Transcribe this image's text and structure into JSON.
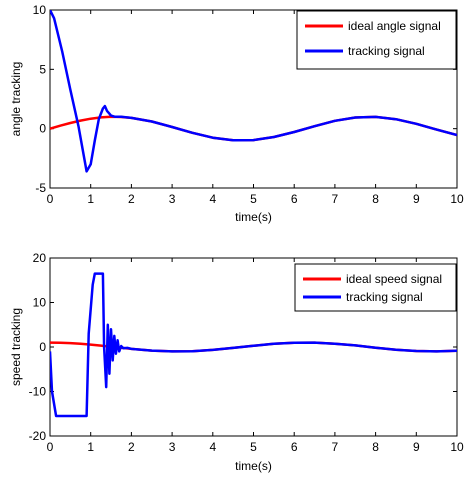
{
  "chart_data": [
    {
      "type": "line",
      "xlabel": "time(s)",
      "ylabel": "angle tracking",
      "xlim": [
        0,
        10
      ],
      "ylim": [
        -5,
        10
      ],
      "xticks": [
        "0",
        "1",
        "2",
        "3",
        "4",
        "5",
        "6",
        "7",
        "8",
        "9",
        "10"
      ],
      "yticks": [
        "-5",
        "0",
        "5",
        "10"
      ],
      "legend_position": "top-right",
      "grid": false,
      "series": [
        {
          "name": "ideal angle signal",
          "color": "#ff0000",
          "x": [
            0,
            0.25,
            0.5,
            0.75,
            1.0,
            1.25,
            1.5,
            1.75,
            2.0,
            2.5,
            3.0,
            3.5,
            4.0,
            4.5,
            5.0,
            5.5,
            6.0,
            6.5,
            7.0,
            7.5,
            8.0,
            8.5,
            9.0,
            9.5,
            10.0
          ],
          "y": [
            0,
            0.25,
            0.48,
            0.68,
            0.84,
            0.95,
            1.0,
            0.98,
            0.91,
            0.6,
            0.14,
            -0.35,
            -0.76,
            -0.98,
            -0.96,
            -0.7,
            -0.28,
            0.21,
            0.66,
            0.94,
            0.99,
            0.8,
            0.41,
            -0.08,
            -0.54
          ]
        },
        {
          "name": "tracking signal",
          "color": "#0000ff",
          "x": [
            0,
            0.1,
            0.3,
            0.5,
            0.7,
            0.9,
            1.0,
            1.1,
            1.2,
            1.3,
            1.35,
            1.4,
            1.45,
            1.5,
            1.6,
            1.75,
            2.0,
            2.5,
            3.0,
            3.5,
            4.0,
            4.5,
            5.0,
            5.5,
            6.0,
            6.5,
            7.0,
            7.5,
            8.0,
            8.5,
            9.0,
            9.5,
            10.0
          ],
          "y": [
            10,
            9.3,
            6.5,
            3.3,
            0.2,
            -3.6,
            -3.0,
            -1.0,
            0.8,
            1.7,
            1.9,
            1.5,
            1.3,
            1.1,
            1.0,
            1.0,
            0.91,
            0.6,
            0.14,
            -0.35,
            -0.76,
            -0.98,
            -0.96,
            -0.7,
            -0.28,
            0.21,
            0.66,
            0.94,
            0.99,
            0.8,
            0.41,
            -0.08,
            -0.54
          ]
        }
      ]
    },
    {
      "type": "line",
      "xlabel": "time(s)",
      "ylabel": "speed tracking",
      "xlim": [
        0,
        10
      ],
      "ylim": [
        -20,
        20
      ],
      "xticks": [
        "0",
        "1",
        "2",
        "3",
        "4",
        "5",
        "6",
        "7",
        "8",
        "9",
        "10"
      ],
      "yticks": [
        "-20",
        "-10",
        "0",
        "10",
        "20"
      ],
      "legend_position": "top-right",
      "grid": false,
      "series": [
        {
          "name": "ideal speed signal",
          "color": "#ff0000",
          "x": [
            0,
            0.25,
            0.5,
            0.75,
            1.0,
            1.25,
            1.5,
            1.75,
            2.0,
            2.5,
            3.0,
            3.5,
            4.0,
            4.5,
            5.0,
            5.5,
            6.0,
            6.5,
            7.0,
            7.5,
            8.0,
            8.5,
            9.0,
            9.5,
            10.0
          ],
          "y": [
            1.0,
            0.97,
            0.88,
            0.73,
            0.54,
            0.32,
            0.07,
            -0.18,
            -0.42,
            -0.8,
            -0.99,
            -0.94,
            -0.65,
            -0.21,
            0.28,
            0.71,
            0.96,
            0.98,
            0.75,
            0.35,
            -0.15,
            -0.6,
            -0.91,
            -1.0,
            -0.84
          ]
        },
        {
          "name": "tracking signal",
          "color": "#0000ff",
          "x": [
            0,
            0.05,
            0.15,
            0.5,
            0.9,
            0.95,
            1.05,
            1.1,
            1.3,
            1.33,
            1.38,
            1.42,
            1.46,
            1.5,
            1.54,
            1.58,
            1.62,
            1.66,
            1.7,
            1.75,
            1.8,
            1.9,
            2.0,
            2.5,
            3.0,
            3.5,
            4.0,
            4.5,
            5.0,
            5.5,
            6.0,
            6.5,
            7.0,
            7.5,
            8.0,
            8.5,
            9.0,
            9.5,
            10.0
          ],
          "y": [
            -1.0,
            -10,
            -15.5,
            -15.5,
            -15.5,
            3,
            14,
            16.5,
            16.5,
            0,
            -9,
            5,
            -6,
            4,
            -3,
            2.5,
            -1.5,
            1.5,
            -1.0,
            0.2,
            -0.3,
            -0.2,
            -0.42,
            -0.8,
            -0.99,
            -0.94,
            -0.65,
            -0.21,
            0.28,
            0.71,
            0.96,
            0.98,
            0.75,
            0.35,
            -0.15,
            -0.6,
            -0.91,
            -1.0,
            -0.84
          ]
        }
      ]
    }
  ]
}
